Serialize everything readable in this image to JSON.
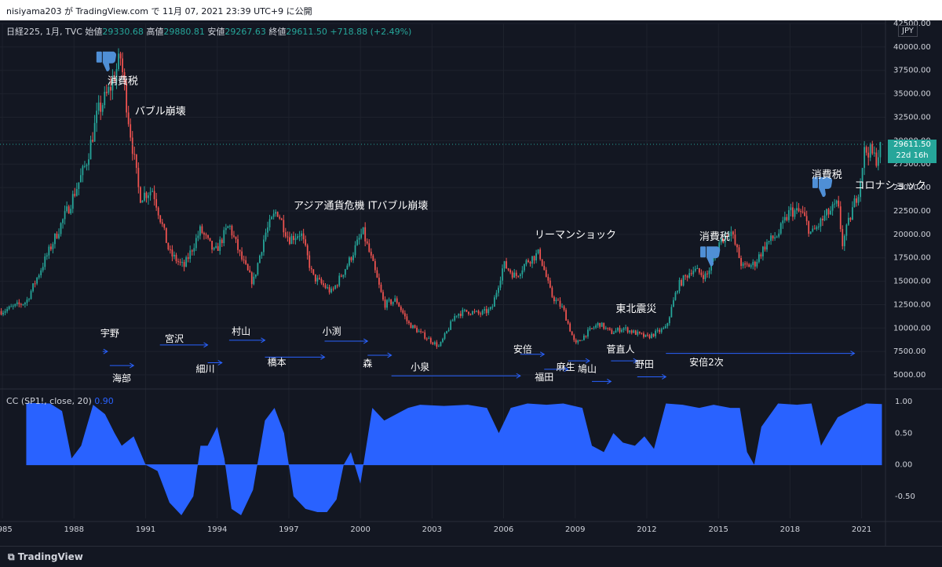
{
  "header": {
    "publish_line": "nisiyama203 が TradingView.com で 11月 07, 2021 23:39 UTC+9 に公開"
  },
  "legend": {
    "symbol": "日経225, 1月, TVC",
    "open_label": "始値",
    "open": "29330.68",
    "high_label": "高値",
    "high": "29880.81",
    "low_label": "安値",
    "low": "29267.63",
    "close_label": "終値",
    "close": "29611.50",
    "change": "+718.88 (+2.49%)"
  },
  "currency": "JPY",
  "last_price": {
    "price": "29611.50",
    "countdown": "22d 16h"
  },
  "indicator": {
    "title": "CC (SP1!, close, 20)",
    "value": "0.90"
  },
  "footer": {
    "brand": "TradingView"
  },
  "colors": {
    "up": "#26a69a",
    "down": "#ef5350",
    "cc_fill": "#2962ff",
    "background": "#131722",
    "grid": "#1e222d",
    "text": "#d1d4dc"
  },
  "chart_data": [
    {
      "type": "candlestick",
      "title": "日経225 月足",
      "x_range": [
        1984.9,
        2022.0
      ],
      "y_range": [
        4000,
        42500
      ],
      "yticks": [
        5000,
        7500,
        10000,
        12500,
        15000,
        17500,
        20000,
        22500,
        25000,
        27500,
        30000,
        32500,
        35000,
        37500,
        40000,
        42500
      ],
      "ytick_labels": [
        "5000.00",
        "7500.00",
        "10000.00",
        "12500.00",
        "15000.00",
        "17500.00",
        "20000.00",
        "22500.00",
        "25000.00",
        "27500.00",
        "30000.00",
        "32500.00",
        "35000.00",
        "37500.00",
        "40000.00",
        "42500.00"
      ],
      "xticks": [
        1985,
        1988,
        1991,
        1994,
        1997,
        2000,
        2003,
        2006,
        2009,
        2012,
        2015,
        2018,
        2021
      ],
      "xtick_labels": [
        "1985",
        "1988",
        "1991",
        "1994",
        "1997",
        "2000",
        "2003",
        "2006",
        "2009",
        "2012",
        "2015",
        "2018",
        "2021"
      ],
      "close_series": {
        "x": [
          1985.0,
          1986.0,
          1987.0,
          1987.8,
          1988.5,
          1989.0,
          1989.5,
          1989.95,
          1990.3,
          1990.75,
          1991.3,
          1992.0,
          1992.6,
          1993.3,
          1993.9,
          1994.5,
          1995.0,
          1995.5,
          1996.0,
          1996.5,
          1997.0,
          1997.5,
          1998.0,
          1998.8,
          1999.5,
          2000.1,
          2000.5,
          2001.0,
          2001.5,
          2002.0,
          2002.5,
          2003.3,
          2004.0,
          2004.5,
          2005.0,
          2005.5,
          2006.0,
          2006.5,
          2007.0,
          2007.5,
          2008.0,
          2008.5,
          2009.0,
          2009.5,
          2010.0,
          2010.5,
          2011.0,
          2011.5,
          2012.0,
          2012.8,
          2013.3,
          2013.9,
          2014.5,
          2015.0,
          2015.5,
          2016.0,
          2016.5,
          2017.0,
          2017.5,
          2018.0,
          2018.5,
          2018.9,
          2019.5,
          2020.0,
          2020.2,
          2020.6,
          2020.9,
          2021.1,
          2021.3,
          2021.6,
          2021.85
        ],
        "y": [
          11800,
          12800,
          18500,
          23000,
          27500,
          33000,
          35500,
          38900,
          32000,
          24000,
          24800,
          18000,
          16500,
          20500,
          18000,
          21000,
          17500,
          14800,
          20000,
          22600,
          19500,
          20200,
          15500,
          13800,
          17000,
          20300,
          17000,
          12500,
          13000,
          10500,
          9500,
          8000,
          11500,
          11800,
          11500,
          12000,
          16800,
          15500,
          17200,
          18000,
          13500,
          12000,
          8200,
          9500,
          10500,
          9500,
          10000,
          9500,
          9000,
          10000,
          14500,
          16300,
          15500,
          19000,
          20500,
          16500,
          16800,
          19000,
          20000,
          22500,
          22300,
          20000,
          22000,
          23200,
          19000,
          22500,
          25000,
          28800,
          29000,
          28000,
          29611
        ]
      }
    },
    {
      "type": "area",
      "title": "CC (SP1!, close, 20)",
      "y_range": [
        -0.85,
        1.1
      ],
      "yticks": [
        1.0,
        0.5,
        0.0,
        -0.5
      ],
      "ytick_labels": [
        "1.00",
        "0.50",
        "0.00",
        "-0.50"
      ],
      "x": [
        1986.0,
        1987.0,
        1987.5,
        1987.9,
        1988.3,
        1988.8,
        1989.3,
        1989.7,
        1990.0,
        1990.5,
        1991.0,
        1991.5,
        1992.0,
        1992.5,
        1993.0,
        1993.3,
        1993.6,
        1994.0,
        1994.3,
        1994.6,
        1995.0,
        1995.5,
        1996.0,
        1996.4,
        1996.8,
        1997.2,
        1997.7,
        1998.2,
        1998.6,
        1999.0,
        1999.3,
        1999.6,
        2000.0,
        2000.5,
        2001.0,
        2002.0,
        2002.5,
        2003.5,
        2004.5,
        2005.3,
        2005.8,
        2006.3,
        2007.0,
        2007.8,
        2008.5,
        2009.3,
        2009.7,
        2010.2,
        2010.6,
        2011.0,
        2011.5,
        2011.9,
        2012.3,
        2012.8,
        2013.5,
        2014.2,
        2014.8,
        2015.5,
        2015.9,
        2016.2,
        2016.5,
        2016.8,
        2017.5,
        2018.3,
        2018.9,
        2019.3,
        2019.6,
        2020.0,
        2020.5,
        2021.2,
        2021.85
      ],
      "values": [
        0.98,
        0.97,
        0.85,
        0.1,
        0.3,
        0.95,
        0.8,
        0.5,
        0.3,
        0.45,
        0.0,
        -0.1,
        -0.6,
        -0.8,
        -0.5,
        0.3,
        0.3,
        0.6,
        0.1,
        -0.7,
        -0.8,
        -0.4,
        0.7,
        0.9,
        0.5,
        -0.5,
        -0.7,
        -0.75,
        -0.75,
        -0.55,
        0.0,
        0.2,
        -0.3,
        0.9,
        0.7,
        0.9,
        0.95,
        0.93,
        0.95,
        0.9,
        0.5,
        0.9,
        0.97,
        0.95,
        0.97,
        0.9,
        0.3,
        0.2,
        0.5,
        0.35,
        0.3,
        0.45,
        0.25,
        0.97,
        0.95,
        0.9,
        0.95,
        0.9,
        0.9,
        0.2,
        0.0,
        0.6,
        0.97,
        0.95,
        0.97,
        0.3,
        0.5,
        0.75,
        0.85,
        0.97,
        0.96
      ]
    }
  ],
  "annotations": [
    {
      "text": "消費税",
      "x": 1989.4,
      "y": 36000
    },
    {
      "text": "バブル崩壊",
      "x": 1990.55,
      "y": 32800
    },
    {
      "text": "アジア通貨危機 ITバブル崩壊",
      "x": 1997.2,
      "y": 22700
    },
    {
      "text": "リーマンショック",
      "x": 2007.3,
      "y": 19600
    },
    {
      "text": "消費税",
      "x": 2014.2,
      "y": 19400
    },
    {
      "text": "消費税",
      "x": 2018.9,
      "y": 26000
    },
    {
      "text": "コロナショック",
      "x": 2020.7,
      "y": 24900
    },
    {
      "text": "東北震災",
      "x": 2010.7,
      "y": 11700
    }
  ],
  "pm_labels": [
    {
      "text": "宇野",
      "x": 1989.5,
      "y": 9100
    },
    {
      "text": "海部",
      "x": 1990.0,
      "y": 4300
    },
    {
      "text": "宮沢",
      "x": 1992.2,
      "y": 8500
    },
    {
      "text": "細川",
      "x": 1993.5,
      "y": 5300
    },
    {
      "text": "村山",
      "x": 1995.0,
      "y": 9300
    },
    {
      "text": "橋本",
      "x": 1996.5,
      "y": 6000
    },
    {
      "text": "小渕",
      "x": 1998.8,
      "y": 9300
    },
    {
      "text": "森",
      "x": 2000.3,
      "y": 5900
    },
    {
      "text": "小泉",
      "x": 2002.5,
      "y": 5500
    },
    {
      "text": "安倍",
      "x": 2006.8,
      "y": 7400
    },
    {
      "text": "福田",
      "x": 2007.7,
      "y": 4400
    },
    {
      "text": "麻生",
      "x": 2008.6,
      "y": 5500
    },
    {
      "text": "鳩山",
      "x": 2009.5,
      "y": 5300
    },
    {
      "text": "菅直人",
      "x": 2010.9,
      "y": 7400
    },
    {
      "text": "野田",
      "x": 2011.9,
      "y": 5800
    },
    {
      "text": "安倍2次",
      "x": 2014.5,
      "y": 6000
    }
  ],
  "tenure_arrows": [
    {
      "x1": 1989.2,
      "y1": 7500,
      "x2": 1989.4,
      "y2": 7500
    },
    {
      "x1": 1989.5,
      "y1": 6000,
      "x2": 1990.5,
      "y2": 6000
    },
    {
      "x1": 1991.6,
      "y1": 8200,
      "x2": 1993.6,
      "y2": 8200
    },
    {
      "x1": 1993.6,
      "y1": 6300,
      "x2": 1994.2,
      "y2": 6300
    },
    {
      "x1": 1994.5,
      "y1": 8700,
      "x2": 1996.0,
      "y2": 8700
    },
    {
      "x1": 1996.0,
      "y1": 6900,
      "x2": 1998.5,
      "y2": 6900
    },
    {
      "x1": 1998.5,
      "y1": 8600,
      "x2": 2000.3,
      "y2": 8600
    },
    {
      "x1": 2000.3,
      "y1": 7100,
      "x2": 2001.3,
      "y2": 7100
    },
    {
      "x1": 2001.3,
      "y1": 4900,
      "x2": 2006.7,
      "y2": 4900
    },
    {
      "x1": 2006.7,
      "y1": 7200,
      "x2": 2007.7,
      "y2": 7200
    },
    {
      "x1": 2007.7,
      "y1": 5600,
      "x2": 2008.7,
      "y2": 5600
    },
    {
      "x1": 2008.7,
      "y1": 6500,
      "x2": 2009.6,
      "y2": 6500
    },
    {
      "x1": 2009.7,
      "y1": 4300,
      "x2": 2010.5,
      "y2": 4300
    },
    {
      "x1": 2010.5,
      "y1": 6500,
      "x2": 2011.6,
      "y2": 6500
    },
    {
      "x1": 2011.6,
      "y1": 4800,
      "x2": 2012.8,
      "y2": 4800
    },
    {
      "x1": 2012.8,
      "y1": 7300,
      "x2": 2020.7,
      "y2": 7300
    }
  ],
  "thumbs_icons": [
    {
      "x": 1989.4,
      "y": 38500
    },
    {
      "x": 2014.7,
      "y": 17700
    },
    {
      "x": 2019.4,
      "y": 25100
    }
  ]
}
